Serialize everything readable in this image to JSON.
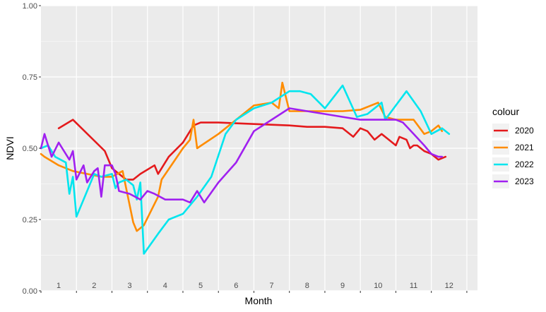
{
  "chart_data": {
    "type": "line",
    "xlabel": "Month",
    "ylabel": "NDVI",
    "ylim": [
      0,
      1
    ],
    "xlim": [
      0,
      12.3
    ],
    "y_ticks": [
      "0.00",
      "0.25",
      "0.50",
      "0.75",
      "1.00"
    ],
    "month_labels": [
      "1",
      "2",
      "3",
      "4",
      "5",
      "6",
      "7",
      "8",
      "9",
      "10",
      "11",
      "12"
    ],
    "grid": true,
    "panel_color": "#ebebeb",
    "grid_color": "#ffffff",
    "legend": {
      "title": "colour",
      "position": "right"
    },
    "series": [
      {
        "name": "2020",
        "color": "#e41a1c",
        "points": [
          [
            0.5,
            0.57
          ],
          [
            0.9,
            0.6
          ],
          [
            1.8,
            0.49
          ],
          [
            2.0,
            0.43
          ],
          [
            2.2,
            0.41
          ],
          [
            2.4,
            0.39
          ],
          [
            2.6,
            0.39
          ],
          [
            2.8,
            0.41
          ],
          [
            3.2,
            0.44
          ],
          [
            3.3,
            0.41
          ],
          [
            3.6,
            0.47
          ],
          [
            4.0,
            0.52
          ],
          [
            4.3,
            0.58
          ],
          [
            4.5,
            0.59
          ],
          [
            5.0,
            0.59
          ],
          [
            6.0,
            0.585
          ],
          [
            7.0,
            0.58
          ],
          [
            7.5,
            0.575
          ],
          [
            8.0,
            0.575
          ],
          [
            8.5,
            0.57
          ],
          [
            8.8,
            0.54
          ],
          [
            9.0,
            0.57
          ],
          [
            9.2,
            0.56
          ],
          [
            9.4,
            0.53
          ],
          [
            9.6,
            0.55
          ],
          [
            9.8,
            0.53
          ],
          [
            10.0,
            0.51
          ],
          [
            10.1,
            0.54
          ],
          [
            10.3,
            0.53
          ],
          [
            10.4,
            0.5
          ],
          [
            10.5,
            0.51
          ],
          [
            10.6,
            0.51
          ],
          [
            10.8,
            0.49
          ],
          [
            11.0,
            0.48
          ],
          [
            11.2,
            0.46
          ],
          [
            11.4,
            0.47
          ]
        ]
      },
      {
        "name": "2021",
        "color": "#ff8c00",
        "points": [
          [
            0.0,
            0.48
          ],
          [
            0.1,
            0.47
          ],
          [
            0.5,
            0.44
          ],
          [
            0.9,
            0.42
          ],
          [
            1.3,
            0.41
          ],
          [
            1.7,
            0.4
          ],
          [
            2.0,
            0.4
          ],
          [
            2.3,
            0.42
          ],
          [
            2.4,
            0.36
          ],
          [
            2.6,
            0.24
          ],
          [
            2.7,
            0.21
          ],
          [
            2.9,
            0.23
          ],
          [
            3.3,
            0.33
          ],
          [
            3.4,
            0.39
          ],
          [
            4.0,
            0.5
          ],
          [
            4.2,
            0.53
          ],
          [
            4.3,
            0.6
          ],
          [
            4.4,
            0.5
          ],
          [
            5.0,
            0.55
          ],
          [
            5.5,
            0.6
          ],
          [
            6.0,
            0.65
          ],
          [
            6.5,
            0.66
          ],
          [
            6.7,
            0.64
          ],
          [
            6.8,
            0.73
          ],
          [
            7.0,
            0.63
          ],
          [
            7.5,
            0.63
          ],
          [
            8.0,
            0.63
          ],
          [
            8.5,
            0.63
          ],
          [
            9.0,
            0.635
          ],
          [
            9.5,
            0.66
          ],
          [
            9.7,
            0.61
          ],
          [
            10.0,
            0.6
          ],
          [
            10.5,
            0.6
          ],
          [
            10.8,
            0.55
          ],
          [
            11.0,
            0.56
          ],
          [
            11.2,
            0.58
          ],
          [
            11.3,
            0.56
          ]
        ]
      },
      {
        "name": "2022",
        "color": "#00e5ee",
        "points": [
          [
            0.0,
            0.5
          ],
          [
            0.2,
            0.51
          ],
          [
            0.4,
            0.47
          ],
          [
            0.7,
            0.45
          ],
          [
            0.8,
            0.34
          ],
          [
            0.9,
            0.4
          ],
          [
            1.0,
            0.26
          ],
          [
            1.2,
            0.32
          ],
          [
            1.5,
            0.41
          ],
          [
            1.7,
            0.4
          ],
          [
            2.0,
            0.41
          ],
          [
            2.1,
            0.36
          ],
          [
            2.2,
            0.38
          ],
          [
            2.4,
            0.39
          ],
          [
            2.6,
            0.37
          ],
          [
            2.7,
            0.32
          ],
          [
            2.8,
            0.38
          ],
          [
            2.9,
            0.13
          ],
          [
            3.3,
            0.2
          ],
          [
            3.6,
            0.25
          ],
          [
            4.0,
            0.27
          ],
          [
            4.4,
            0.33
          ],
          [
            4.8,
            0.4
          ],
          [
            5.2,
            0.55
          ],
          [
            5.5,
            0.6
          ],
          [
            6.0,
            0.64
          ],
          [
            6.5,
            0.66
          ],
          [
            7.0,
            0.7
          ],
          [
            7.3,
            0.7
          ],
          [
            7.6,
            0.69
          ],
          [
            8.0,
            0.64
          ],
          [
            8.5,
            0.72
          ],
          [
            8.9,
            0.61
          ],
          [
            9.2,
            0.62
          ],
          [
            9.6,
            0.66
          ],
          [
            9.7,
            0.6
          ],
          [
            10.0,
            0.65
          ],
          [
            10.3,
            0.7
          ],
          [
            10.7,
            0.63
          ],
          [
            11.0,
            0.55
          ],
          [
            11.3,
            0.57
          ],
          [
            11.5,
            0.55
          ]
        ]
      },
      {
        "name": "2023",
        "color": "#a020f0",
        "points": [
          [
            0.0,
            0.5
          ],
          [
            0.1,
            0.55
          ],
          [
            0.3,
            0.47
          ],
          [
            0.5,
            0.52
          ],
          [
            0.6,
            0.5
          ],
          [
            0.8,
            0.46
          ],
          [
            0.9,
            0.49
          ],
          [
            1.0,
            0.39
          ],
          [
            1.2,
            0.44
          ],
          [
            1.3,
            0.38
          ],
          [
            1.5,
            0.42
          ],
          [
            1.6,
            0.43
          ],
          [
            1.7,
            0.33
          ],
          [
            1.8,
            0.44
          ],
          [
            2.0,
            0.44
          ],
          [
            2.1,
            0.41
          ],
          [
            2.2,
            0.35
          ],
          [
            2.5,
            0.34
          ],
          [
            2.8,
            0.32
          ],
          [
            3.0,
            0.35
          ],
          [
            3.2,
            0.34
          ],
          [
            3.5,
            0.32
          ],
          [
            4.0,
            0.32
          ],
          [
            4.2,
            0.31
          ],
          [
            4.4,
            0.35
          ],
          [
            4.6,
            0.31
          ],
          [
            5.0,
            0.38
          ],
          [
            5.5,
            0.45
          ],
          [
            6.0,
            0.56
          ],
          [
            6.5,
            0.6
          ],
          [
            7.0,
            0.64
          ],
          [
            7.5,
            0.63
          ],
          [
            8.0,
            0.62
          ],
          [
            8.5,
            0.61
          ],
          [
            9.0,
            0.6
          ],
          [
            9.5,
            0.6
          ],
          [
            10.0,
            0.6
          ],
          [
            10.2,
            0.59
          ],
          [
            10.5,
            0.55
          ],
          [
            10.8,
            0.51
          ],
          [
            11.0,
            0.48
          ],
          [
            11.2,
            0.47
          ],
          [
            11.3,
            0.47
          ]
        ]
      }
    ]
  }
}
